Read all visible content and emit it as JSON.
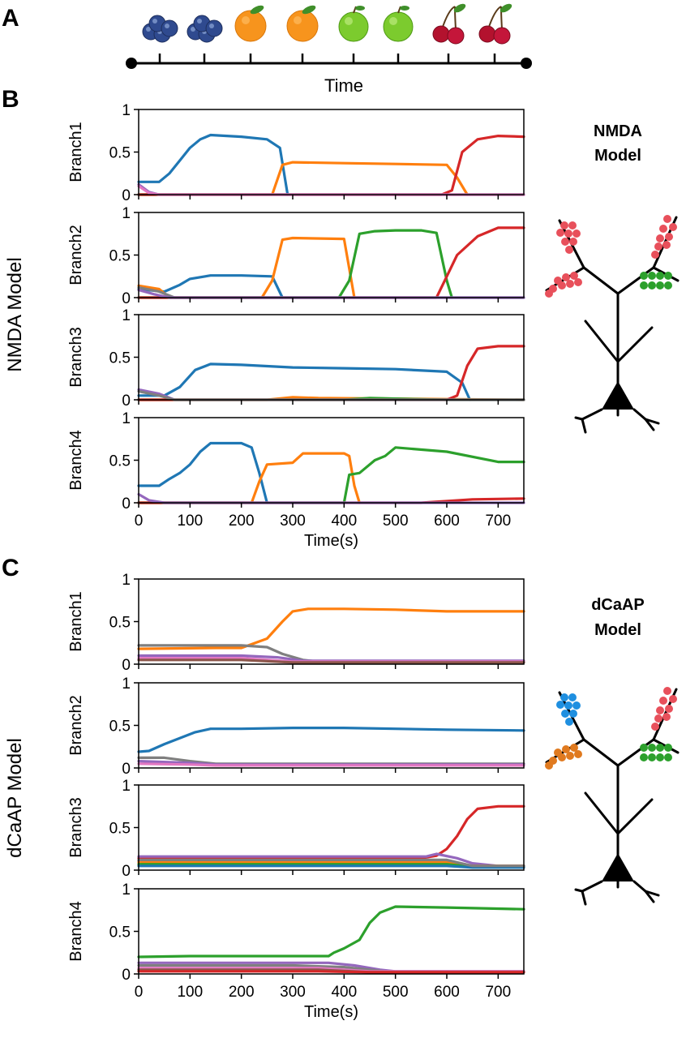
{
  "panels": {
    "A": {
      "letter": "A",
      "timeline_label": "Time",
      "fruit_icons": [
        "blueberry-icon",
        "blueberry-icon",
        "orange-icon",
        "orange-icon",
        "apple-icon",
        "apple-icon",
        "cherry-icon",
        "cherry-icon"
      ]
    },
    "B": {
      "letter": "B",
      "row_label": "NMDA Model",
      "model_title_line1": "NMDA",
      "model_title_line2": "Model",
      "synapse_colors": {
        "top_left": "#e8505b",
        "mid_left": "#e8505b",
        "top_right": "#e8505b",
        "mid_right": "#2ca02c"
      }
    },
    "C": {
      "letter": "C",
      "row_label": "dCaAP Model",
      "model_title_line1": "dCaAP",
      "model_title_line2": "Model",
      "synapse_colors": {
        "top_left": "#1f8fe0",
        "mid_left": "#e07a1f",
        "top_right": "#e8505b",
        "mid_right": "#2ca02c"
      }
    }
  },
  "colors": {
    "blue": "#1f77b4",
    "orange": "#ff7f0e",
    "green": "#2ca02c",
    "red": "#d62728",
    "purple": "#9467bd",
    "brown": "#8c564b",
    "pink": "#e377c2",
    "gray": "#7f7f7f"
  },
  "chart_data": [
    {
      "type": "line",
      "panel": "B",
      "ylabel": "Branch1",
      "xlabel": "",
      "xlim": [
        0,
        750
      ],
      "ylim": [
        0,
        1
      ],
      "xticks": [
        "0",
        "100",
        "200",
        "300",
        "400",
        "500",
        "600",
        "700"
      ],
      "yticks": [
        "0",
        "0.5",
        "1"
      ],
      "series": [
        {
          "color": "#1f77b4",
          "x": [
            0,
            40,
            60,
            80,
            100,
            120,
            140,
            200,
            250,
            275,
            290
          ],
          "y": [
            0.15,
            0.15,
            0.25,
            0.4,
            0.55,
            0.65,
            0.7,
            0.68,
            0.65,
            0.55,
            0
          ]
        },
        {
          "color": "#ff7f0e",
          "x": [
            0,
            260,
            280,
            300,
            400,
            500,
            600,
            620,
            640
          ],
          "y": [
            0,
            0,
            0.35,
            0.38,
            0.37,
            0.36,
            0.35,
            0.2,
            0
          ]
        },
        {
          "color": "#2ca02c",
          "x": [
            0,
            400,
            600,
            750
          ],
          "y": [
            0,
            0,
            0,
            0
          ]
        },
        {
          "color": "#d62728",
          "x": [
            0,
            590,
            610,
            630,
            660,
            700,
            750
          ],
          "y": [
            0,
            0,
            0.05,
            0.5,
            0.65,
            0.69,
            0.68
          ]
        },
        {
          "color": "#9467bd",
          "x": [
            0,
            20,
            40,
            750
          ],
          "y": [
            0.12,
            0.03,
            0,
            0
          ]
        },
        {
          "color": "#e377c2",
          "x": [
            0,
            20,
            40,
            750
          ],
          "y": [
            0.1,
            0.02,
            0,
            0
          ]
        }
      ]
    },
    {
      "type": "line",
      "panel": "B",
      "ylabel": "Branch2",
      "xlabel": "",
      "xlim": [
        0,
        750
      ],
      "ylim": [
        0,
        1
      ],
      "xticks": [
        "0",
        "100",
        "200",
        "300",
        "400",
        "500",
        "600",
        "700"
      ],
      "yticks": [
        "0",
        "0.5",
        "1"
      ],
      "series": [
        {
          "color": "#1f77b4",
          "x": [
            0,
            50,
            80,
            100,
            140,
            200,
            260,
            280
          ],
          "y": [
            0.1,
            0.07,
            0.15,
            0.22,
            0.26,
            0.26,
            0.25,
            0
          ]
        },
        {
          "color": "#ff7f0e",
          "x": [
            0,
            40,
            60,
            240,
            260,
            280,
            300,
            400,
            420
          ],
          "y": [
            0.14,
            0.1,
            0,
            0,
            0.2,
            0.68,
            0.7,
            0.69,
            0
          ]
        },
        {
          "color": "#2ca02c",
          "x": [
            0,
            390,
            410,
            430,
            460,
            500,
            550,
            580,
            600,
            610
          ],
          "y": [
            0,
            0,
            0.2,
            0.75,
            0.78,
            0.79,
            0.79,
            0.76,
            0.2,
            0
          ]
        },
        {
          "color": "#d62728",
          "x": [
            0,
            580,
            600,
            620,
            660,
            700,
            750
          ],
          "y": [
            0,
            0,
            0.25,
            0.5,
            0.72,
            0.82,
            0.82
          ]
        },
        {
          "color": "#7f7f7f",
          "x": [
            0,
            40,
            70,
            750
          ],
          "y": [
            0.12,
            0.07,
            0,
            0
          ]
        },
        {
          "color": "#9467bd",
          "x": [
            0,
            30,
            60,
            750
          ],
          "y": [
            0.09,
            0.04,
            0,
            0
          ]
        }
      ]
    },
    {
      "type": "line",
      "panel": "B",
      "ylabel": "Branch3",
      "xlabel": "",
      "xlim": [
        0,
        750
      ],
      "ylim": [
        0,
        1
      ],
      "xticks": [
        "0",
        "100",
        "200",
        "300",
        "400",
        "500",
        "600",
        "700"
      ],
      "yticks": [
        "0",
        "0.5",
        "1"
      ],
      "series": [
        {
          "color": "#1f77b4",
          "x": [
            0,
            50,
            80,
            110,
            140,
            200,
            300,
            400,
            500,
            600,
            630,
            645
          ],
          "y": [
            0.05,
            0.05,
            0.15,
            0.35,
            0.42,
            0.41,
            0.38,
            0.37,
            0.36,
            0.33,
            0.2,
            0
          ]
        },
        {
          "color": "#ff7f0e",
          "x": [
            0,
            100,
            250,
            300,
            350,
            750
          ],
          "y": [
            0,
            0,
            0,
            0.03,
            0.02,
            0
          ]
        },
        {
          "color": "#2ca02c",
          "x": [
            0,
            400,
            450,
            600,
            750
          ],
          "y": [
            0,
            0,
            0.02,
            0,
            0
          ]
        },
        {
          "color": "#d62728",
          "x": [
            0,
            600,
            620,
            640,
            660,
            700,
            750
          ],
          "y": [
            0,
            0,
            0.05,
            0.4,
            0.6,
            0.63,
            0.63
          ]
        },
        {
          "color": "#9467bd",
          "x": [
            0,
            40,
            70,
            750
          ],
          "y": [
            0.12,
            0.07,
            0,
            0
          ]
        },
        {
          "color": "#7f7f7f",
          "x": [
            0,
            40,
            70,
            750
          ],
          "y": [
            0.1,
            0.05,
            0,
            0
          ]
        }
      ]
    },
    {
      "type": "line",
      "panel": "B",
      "ylabel": "Branch4",
      "xlabel": "Time(s)",
      "xlim": [
        0,
        750
      ],
      "ylim": [
        0,
        1
      ],
      "xticks": [
        "0",
        "100",
        "200",
        "300",
        "400",
        "500",
        "600",
        "700"
      ],
      "yticks": [
        "0",
        "0.5",
        "1"
      ],
      "series": [
        {
          "color": "#1f77b4",
          "x": [
            0,
            40,
            60,
            80,
            100,
            120,
            140,
            200,
            220,
            235,
            250
          ],
          "y": [
            0.2,
            0.2,
            0.28,
            0.35,
            0.45,
            0.6,
            0.7,
            0.7,
            0.65,
            0.35,
            0
          ]
        },
        {
          "color": "#ff7f0e",
          "x": [
            0,
            220,
            235,
            250,
            300,
            320,
            400,
            410,
            420,
            430
          ],
          "y": [
            0,
            0,
            0.25,
            0.45,
            0.47,
            0.58,
            0.58,
            0.55,
            0.2,
            0
          ]
        },
        {
          "color": "#2ca02c",
          "x": [
            0,
            400,
            410,
            430,
            460,
            480,
            500,
            600,
            700,
            750
          ],
          "y": [
            0,
            0,
            0.33,
            0.35,
            0.5,
            0.55,
            0.65,
            0.6,
            0.48,
            0.48
          ]
        },
        {
          "color": "#d62728",
          "x": [
            0,
            550,
            650,
            750
          ],
          "y": [
            0,
            0,
            0.04,
            0.05
          ]
        },
        {
          "color": "#9467bd",
          "x": [
            0,
            20,
            50,
            750
          ],
          "y": [
            0.1,
            0.03,
            0,
            0
          ]
        }
      ]
    },
    {
      "type": "line",
      "panel": "C",
      "ylabel": "Branch1",
      "xlabel": "",
      "xlim": [
        0,
        750
      ],
      "ylim": [
        0,
        1
      ],
      "xticks": [
        "0",
        "100",
        "200",
        "300",
        "400",
        "500",
        "600",
        "700"
      ],
      "yticks": [
        "0",
        "0.5",
        "1"
      ],
      "series": [
        {
          "color": "#ff7f0e",
          "x": [
            0,
            150,
            200,
            250,
            280,
            300,
            330,
            400,
            500,
            600,
            750
          ],
          "y": [
            0.18,
            0.19,
            0.19,
            0.3,
            0.5,
            0.62,
            0.65,
            0.65,
            0.64,
            0.62,
            0.62
          ]
        },
        {
          "color": "#7f7f7f",
          "x": [
            0,
            100,
            200,
            250,
            280,
            320,
            350,
            750
          ],
          "y": [
            0.22,
            0.22,
            0.22,
            0.2,
            0.12,
            0.05,
            0.03,
            0.03
          ]
        },
        {
          "color": "#9467bd",
          "x": [
            0,
            200,
            270,
            320,
            750
          ],
          "y": [
            0.1,
            0.1,
            0.08,
            0.04,
            0.04
          ]
        },
        {
          "color": "#e377c2",
          "x": [
            0,
            200,
            300,
            750
          ],
          "y": [
            0.07,
            0.07,
            0.03,
            0.03
          ]
        },
        {
          "color": "#8c564b",
          "x": [
            0,
            200,
            300,
            750
          ],
          "y": [
            0.05,
            0.05,
            0.02,
            0.02
          ]
        }
      ]
    },
    {
      "type": "line",
      "panel": "C",
      "ylabel": "Branch2",
      "xlabel": "",
      "xlim": [
        0,
        750
      ],
      "ylim": [
        0,
        1
      ],
      "xticks": [
        "0",
        "100",
        "200",
        "300",
        "400",
        "500",
        "600",
        "700"
      ],
      "yticks": [
        "0",
        "0.5",
        "1"
      ],
      "series": [
        {
          "color": "#1f77b4",
          "x": [
            0,
            20,
            50,
            80,
            110,
            140,
            200,
            300,
            400,
            500,
            600,
            750
          ],
          "y": [
            0.19,
            0.2,
            0.28,
            0.35,
            0.42,
            0.46,
            0.46,
            0.47,
            0.47,
            0.46,
            0.45,
            0.44
          ]
        },
        {
          "color": "#7f7f7f",
          "x": [
            0,
            50,
            100,
            150,
            750
          ],
          "y": [
            0.12,
            0.12,
            0.08,
            0.05,
            0.05
          ]
        },
        {
          "color": "#9467bd",
          "x": [
            0,
            100,
            150,
            750
          ],
          "y": [
            0.08,
            0.06,
            0.04,
            0.04
          ]
        },
        {
          "color": "#e377c2",
          "x": [
            0,
            100,
            150,
            750
          ],
          "y": [
            0.05,
            0.04,
            0.03,
            0.03
          ]
        }
      ]
    },
    {
      "type": "line",
      "panel": "C",
      "ylabel": "Branch3",
      "xlabel": "",
      "xlim": [
        0,
        750
      ],
      "ylim": [
        0,
        1
      ],
      "xticks": [
        "0",
        "100",
        "200",
        "300",
        "400",
        "500",
        "600",
        "700"
      ],
      "yticks": [
        "0",
        "0.5",
        "1"
      ],
      "series": [
        {
          "color": "#d62728",
          "x": [
            0,
            300,
            550,
            580,
            600,
            620,
            640,
            660,
            700,
            750
          ],
          "y": [
            0.14,
            0.14,
            0.14,
            0.17,
            0.25,
            0.4,
            0.6,
            0.72,
            0.75,
            0.75
          ]
        },
        {
          "color": "#9467bd",
          "x": [
            0,
            300,
            560,
            580,
            620,
            650,
            700,
            750
          ],
          "y": [
            0.16,
            0.16,
            0.16,
            0.19,
            0.14,
            0.08,
            0.05,
            0.05
          ]
        },
        {
          "color": "#8c564b",
          "x": [
            0,
            600,
            650,
            750
          ],
          "y": [
            0.11,
            0.11,
            0.05,
            0.05
          ]
        },
        {
          "color": "#ff7f0e",
          "x": [
            0,
            600,
            650,
            750
          ],
          "y": [
            0.09,
            0.09,
            0.05,
            0.05
          ]
        },
        {
          "color": "#2ca02c",
          "x": [
            0,
            600,
            650,
            750
          ],
          "y": [
            0.07,
            0.07,
            0.04,
            0.04
          ]
        },
        {
          "color": "#1f77b4",
          "x": [
            0,
            600,
            650,
            750
          ],
          "y": [
            0.05,
            0.05,
            0.03,
            0.03
          ]
        },
        {
          "color": "#7f7f7f",
          "x": [
            0,
            600,
            650,
            750
          ],
          "y": [
            0.12,
            0.12,
            0.05,
            0.05
          ]
        }
      ]
    },
    {
      "type": "line",
      "panel": "C",
      "ylabel": "Branch4",
      "xlabel": "Time(s)",
      "xlim": [
        0,
        750
      ],
      "ylim": [
        0,
        1
      ],
      "xticks": [
        "0",
        "100",
        "200",
        "300",
        "400",
        "500",
        "600",
        "700"
      ],
      "yticks": [
        "0",
        "0.5",
        "1"
      ],
      "series": [
        {
          "color": "#2ca02c",
          "x": [
            0,
            100,
            200,
            300,
            370,
            380,
            400,
            430,
            450,
            470,
            500,
            600,
            750
          ],
          "y": [
            0.2,
            0.21,
            0.21,
            0.21,
            0.21,
            0.25,
            0.3,
            0.4,
            0.6,
            0.72,
            0.79,
            0.78,
            0.76
          ]
        },
        {
          "color": "#9467bd",
          "x": [
            0,
            300,
            370,
            420,
            470,
            500,
            750
          ],
          "y": [
            0.13,
            0.13,
            0.13,
            0.1,
            0.05,
            0.03,
            0.03
          ]
        },
        {
          "color": "#7f7f7f",
          "x": [
            0,
            300,
            400,
            480,
            750
          ],
          "y": [
            0.1,
            0.1,
            0.08,
            0.03,
            0.03
          ]
        },
        {
          "color": "#e377c2",
          "x": [
            0,
            350,
            450,
            750
          ],
          "y": [
            0.07,
            0.07,
            0.03,
            0.03
          ]
        },
        {
          "color": "#8c564b",
          "x": [
            0,
            350,
            450,
            750
          ],
          "y": [
            0.05,
            0.05,
            0.02,
            0.02
          ]
        },
        {
          "color": "#d62728",
          "x": [
            0,
            350,
            450,
            750
          ],
          "y": [
            0.03,
            0.03,
            0.02,
            0.02
          ]
        }
      ]
    }
  ]
}
